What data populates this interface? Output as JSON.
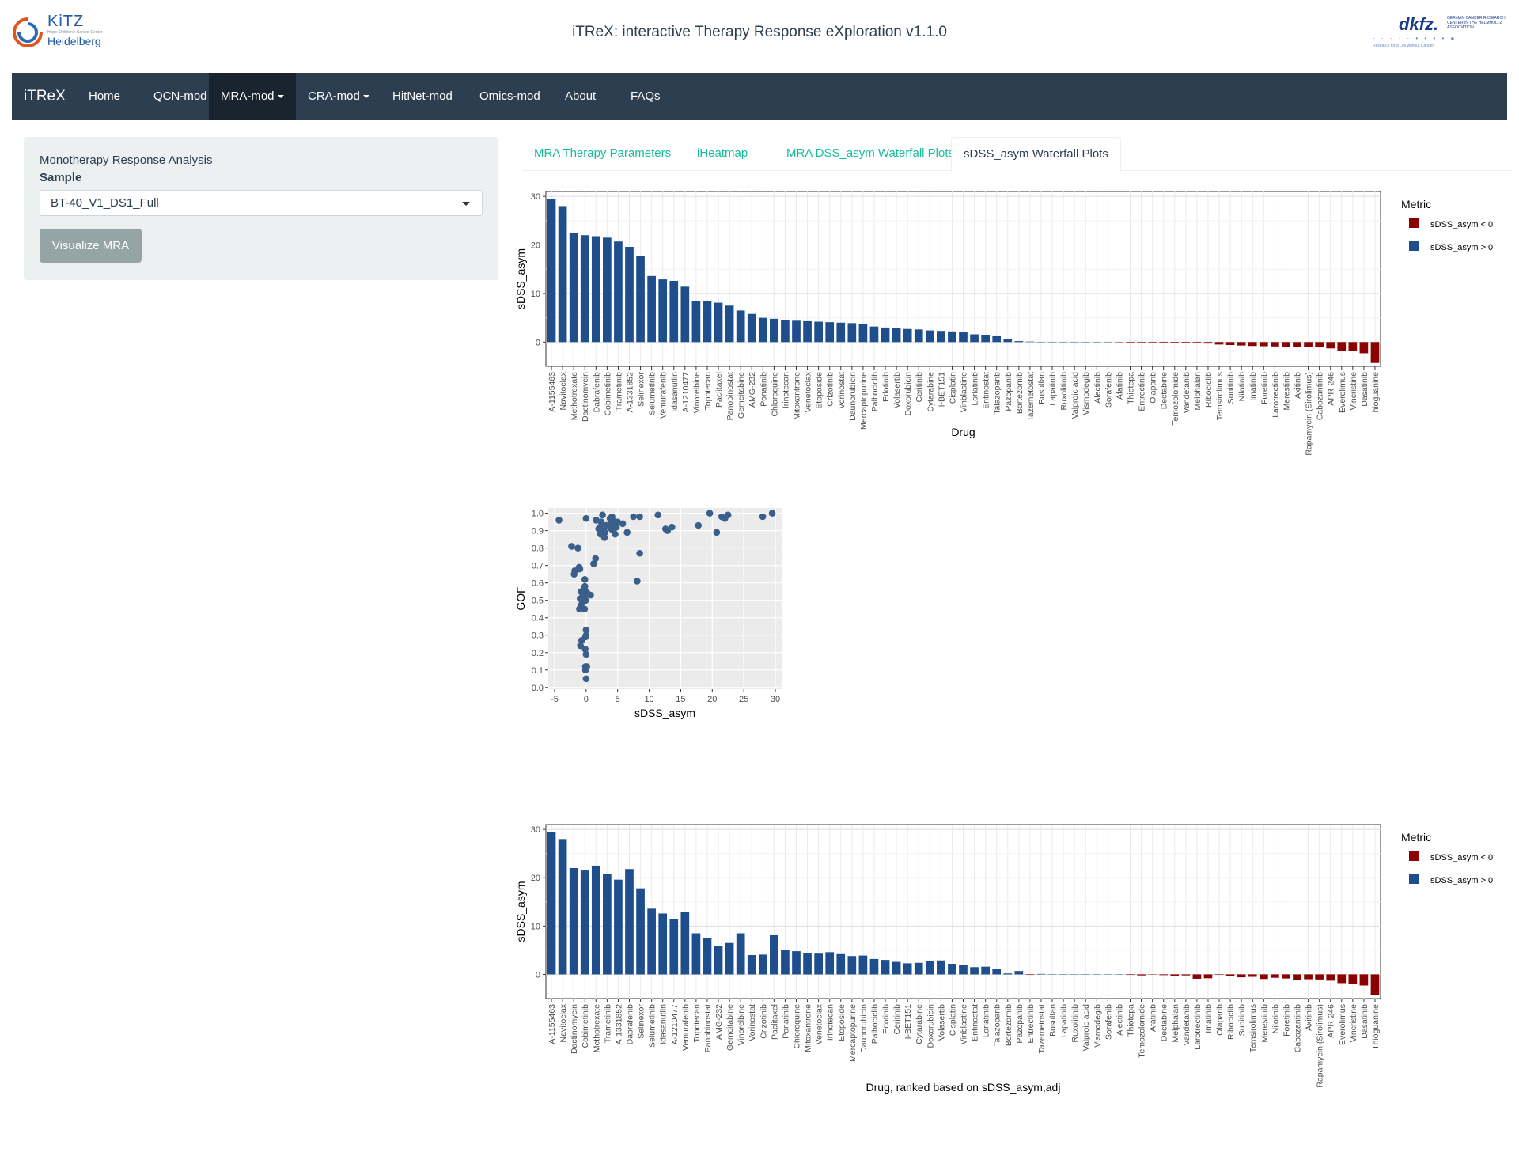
{
  "header": {
    "title": "iTReX: interactive Therapy Response eXploration v1.1.0",
    "logo_left": {
      "word": "KiTZ",
      "tiny": "Hopp Children's Cancer Center",
      "city": "Heidelberg"
    },
    "logo_right": {
      "word": "dkfz.",
      "sub": "GERMAN CANCER RESEARCH CENTER IN THE HELMHOLTZ ASSOCIATION",
      "tag": "Research for a Life without Cancer"
    }
  },
  "navbar": {
    "brand": "iTReX",
    "items": [
      {
        "label": "Home",
        "active": false,
        "dropdown": false
      },
      {
        "label": "QCN-mod",
        "active": false,
        "dropdown": false
      },
      {
        "label": "MRA-mod",
        "active": true,
        "dropdown": true
      },
      {
        "label": "CRA-mod",
        "active": false,
        "dropdown": true
      },
      {
        "label": "HitNet-mod",
        "active": false,
        "dropdown": false
      },
      {
        "label": "Omics-mod",
        "active": false,
        "dropdown": false
      },
      {
        "label": "About",
        "active": false,
        "dropdown": false
      },
      {
        "label": "FAQs",
        "active": false,
        "dropdown": false
      }
    ]
  },
  "sidebar": {
    "title": "Monotherapy Response Analysis",
    "sample_label": "Sample",
    "sample_value": "BT-40_V1_DS1_Full",
    "button_label": "Visualize MRA"
  },
  "tabs": [
    {
      "label": "MRA Therapy Parameters",
      "active": false
    },
    {
      "label": "iHeatmap",
      "active": false
    },
    {
      "label": "MRA DSS_asym Waterfall Plots",
      "active": false
    },
    {
      "label": "sDSS_asym Waterfall Plots",
      "active": true
    }
  ],
  "colors": {
    "navbar": "#2c3e50",
    "accent": "#18bc9c",
    "positive": "#1f4e8c",
    "negative": "#8b0000",
    "scatter": "#3a5f8a"
  },
  "chart_data": [
    {
      "type": "bar",
      "xlabel": "Drug",
      "ylabel": "sDSS_asym",
      "ylim": [
        -5,
        31
      ],
      "yticks": [
        0,
        10,
        20,
        30
      ],
      "legend": {
        "title": "Metric",
        "entries": [
          "sDSS_asym < 0",
          "sDSS_asym > 0"
        ],
        "position": "right"
      },
      "categories": [
        "A-1155463",
        "Navitoclax",
        "Methotrexate",
        "Dactinomycin",
        "Dabrafenib",
        "Cobimetinib",
        "Trametinib",
        "A-1331852",
        "Selinexor",
        "Selumetinib",
        "Vemurafenib",
        "Idasanutlin",
        "A-1210477",
        "Vinorelbine",
        "Topotecan",
        "Paclitaxel",
        "Panobinostat",
        "Gemcitabine",
        "AMG-232",
        "Ponatinib",
        "Chloroquine",
        "Irinotecan",
        "Mitoxantrone",
        "Venetoclax",
        "Etoposide",
        "Crizotinib",
        "Vorinostat",
        "Daunorubicin",
        "Mercaptopurine",
        "Palbociclib",
        "Erlotinib",
        "Volasertib",
        "Doxorubicin",
        "Ceritinib",
        "Cytarabine",
        "I-BET151",
        "Cisplatin",
        "Vinblastine",
        "Lorlatinib",
        "Entinostat",
        "Talazoparib",
        "Pazopanib",
        "Bortezomib",
        "Tazemetostat",
        "Busulfan",
        "Lapatinib",
        "Ruxolitinib",
        "Valproic acid",
        "Vismodegib",
        "Alectinib",
        "Sorafenib",
        "Afatinib",
        "Thiotepa",
        "Entrectinib",
        "Olaparib",
        "Dectabine",
        "Temozolomide",
        "Vandetanib",
        "Melphalan",
        "Ribociclib",
        "Temsirolimus",
        "Sunitinib",
        "Nilotinib",
        "Imatinib",
        "Foretinib",
        "Larotrectinib",
        "Merestinib",
        "Axitinib",
        "Rapamycin (Sirolimus)",
        "Cabozantinib",
        "APR-246",
        "Everolimus",
        "Vincristine",
        "Dasatinib",
        "Thioguanine"
      ],
      "values": [
        29.5,
        28.0,
        22.5,
        22.0,
        21.8,
        21.5,
        20.7,
        19.6,
        17.8,
        13.6,
        12.9,
        12.6,
        11.4,
        8.5,
        8.5,
        8.1,
        7.5,
        6.5,
        5.8,
        5.0,
        4.8,
        4.6,
        4.4,
        4.3,
        4.2,
        4.1,
        4.0,
        3.9,
        3.8,
        3.2,
        3.0,
        2.9,
        2.7,
        2.6,
        2.4,
        2.3,
        2.2,
        2.0,
        1.6,
        1.5,
        1.2,
        0.7,
        0.2,
        0.1,
        0,
        0,
        0,
        0,
        0,
        0,
        0,
        -0.05,
        -0.1,
        -0.1,
        -0.1,
        -0.15,
        -0.2,
        -0.2,
        -0.25,
        -0.3,
        -0.5,
        -0.6,
        -0.7,
        -0.8,
        -0.85,
        -0.9,
        -0.95,
        -1.0,
        -1.05,
        -1.1,
        -1.3,
        -1.8,
        -1.9,
        -2.3,
        -4.3
      ]
    },
    {
      "type": "scatter",
      "xlabel": "sDSS_asym",
      "ylabel": "GOF",
      "xlim": [
        -6,
        31
      ],
      "ylim": [
        -0.01,
        1.03
      ],
      "xticks": [
        -5,
        0,
        5,
        10,
        15,
        20,
        25,
        30
      ],
      "yticks": [
        "0.0",
        "0.1",
        "0.2",
        "0.3",
        "0.4",
        "0.5",
        "0.6",
        "0.7",
        "0.8",
        "0.9",
        "1.0"
      ],
      "points": [
        [
          -4.3,
          0.96
        ],
        [
          -2.3,
          0.81
        ],
        [
          -1.9,
          0.65
        ],
        [
          -1.8,
          0.67
        ],
        [
          -1.3,
          0.8
        ],
        [
          -1.1,
          0.69
        ],
        [
          -1.0,
          0.68
        ],
        [
          -1.05,
          0.45
        ],
        [
          -0.95,
          0.51
        ],
        [
          -0.9,
          0.24
        ],
        [
          -0.85,
          0.47
        ],
        [
          -0.8,
          0.55
        ],
        [
          -0.7,
          0.27
        ],
        [
          -0.6,
          0.49
        ],
        [
          -0.5,
          0.53
        ],
        [
          -0.3,
          0.57
        ],
        [
          -0.25,
          0.45
        ],
        [
          -0.2,
          0.62
        ],
        [
          -0.2,
          0.58
        ],
        [
          -0.15,
          0.22
        ],
        [
          -0.1,
          0.29
        ],
        [
          -0.1,
          0.12
        ],
        [
          -0.1,
          0.1
        ],
        [
          -0.05,
          0.5
        ],
        [
          0,
          0.33
        ],
        [
          0,
          0.05
        ],
        [
          0,
          0.19
        ],
        [
          0,
          0.3
        ],
        [
          0,
          0.55
        ],
        [
          0,
          0.97
        ],
        [
          0.1,
          0.12
        ],
        [
          0.2,
          0.54
        ],
        [
          0.7,
          0.53
        ],
        [
          1.2,
          0.71
        ],
        [
          1.5,
          0.74
        ],
        [
          1.6,
          0.96
        ],
        [
          2.0,
          0.91
        ],
        [
          2.2,
          0.92
        ],
        [
          2.3,
          0.88
        ],
        [
          2.4,
          0.95
        ],
        [
          2.6,
          0.99
        ],
        [
          2.7,
          0.9
        ],
        [
          2.9,
          0.86
        ],
        [
          3.0,
          0.89
        ],
        [
          3.2,
          0.93
        ],
        [
          3.8,
          0.97
        ],
        [
          3.9,
          0.94
        ],
        [
          4.0,
          0.91
        ],
        [
          4.1,
          0.98
        ],
        [
          4.2,
          0.96
        ],
        [
          4.3,
          0.9
        ],
        [
          4.4,
          0.93
        ],
        [
          4.6,
          0.88
        ],
        [
          4.8,
          0.92
        ],
        [
          5.0,
          0.95
        ],
        [
          5.8,
          0.94
        ],
        [
          6.5,
          0.89
        ],
        [
          7.5,
          0.98
        ],
        [
          8.1,
          0.61
        ],
        [
          8.5,
          0.98
        ],
        [
          8.5,
          0.77
        ],
        [
          11.4,
          0.99
        ],
        [
          12.6,
          0.91
        ],
        [
          12.9,
          0.9
        ],
        [
          13.6,
          0.92
        ],
        [
          17.8,
          0.93
        ],
        [
          19.6,
          1.0
        ],
        [
          20.7,
          0.89
        ],
        [
          21.5,
          0.98
        ],
        [
          22.0,
          0.97
        ],
        [
          22.5,
          0.99
        ],
        [
          28.0,
          0.98
        ],
        [
          29.5,
          1.0
        ]
      ]
    },
    {
      "type": "bar",
      "xlabel": "Drug, ranked based on sDSS_asym,adj",
      "ylabel": "sDSS_asym",
      "ylim": [
        -5,
        31
      ],
      "yticks": [
        0,
        10,
        20,
        30
      ],
      "legend": {
        "title": "Metric",
        "entries": [
          "sDSS_asym < 0",
          "sDSS_asym > 0"
        ],
        "position": "right"
      },
      "categories": [
        "A-1155463",
        "Navitoclax",
        "Dactinomycin",
        "Cobimetinib",
        "Methotrexate",
        "Trametinib",
        "A-1331852",
        "Dabrafenib",
        "Selinexor",
        "Selumetinib",
        "Idasanutlin",
        "A-1210477",
        "Vemurafenib",
        "Topotecan",
        "Panobinostat",
        "AMG-232",
        "Gemcitabine",
        "Vinorelbine",
        "Vorinostat",
        "Crizotinib",
        "Paclitaxel",
        "Ponatinib",
        "Chloroquine",
        "Mitoxantrone",
        "Venetoclax",
        "Irinotecan",
        "Etoposide",
        "Mercaptopurine",
        "Daunorubicin",
        "Palbociclib",
        "Erlotinib",
        "Ceritinib",
        "I-BET151",
        "Cytarabine",
        "Doxorubicin",
        "Volasertib",
        "Cisplatin",
        "Vinblastine",
        "Entinostat",
        "Lorlatinib",
        "Talazoparib",
        "Bortezomib",
        "Pazopanib",
        "Entrectinib",
        "Tazemetostat",
        "Busulfan",
        "Lapatinib",
        "Ruxolitinib",
        "Valproic acid",
        "Vismodegib",
        "Sorafenib",
        "Alectinib",
        "Thiotepa",
        "Temozolomide",
        "Afatinib",
        "Dectabine",
        "Melphalan",
        "Vandetanib",
        "Larotrectinib",
        "Imatinib",
        "Olaparib",
        "Ribociclib",
        "Sunitinib",
        "Temsirolimus",
        "Merestinib",
        "Nilotinib",
        "Foretinib",
        "Cabozantinib",
        "Axitinib",
        "Rapamycin (Sirolimus)",
        "APR-246",
        "Everolimus",
        "Vincristine",
        "Dasatinib",
        "Thioguanine"
      ],
      "values": [
        29.5,
        28.0,
        22.0,
        21.5,
        22.5,
        20.7,
        19.6,
        21.8,
        17.8,
        13.6,
        12.6,
        11.4,
        12.9,
        8.5,
        7.5,
        5.8,
        6.5,
        8.5,
        4.0,
        4.1,
        8.1,
        5.0,
        4.8,
        4.4,
        4.3,
        4.6,
        4.2,
        3.8,
        3.9,
        3.2,
        3.0,
        2.6,
        2.3,
        2.4,
        2.7,
        2.9,
        2.2,
        2.0,
        1.5,
        1.6,
        1.2,
        0.2,
        0.7,
        -0.1,
        0.1,
        0,
        0,
        0,
        0,
        0,
        0,
        0,
        -0.1,
        -0.2,
        -0.05,
        -0.15,
        -0.25,
        -0.2,
        -0.9,
        -0.8,
        -0.1,
        -0.3,
        -0.6,
        -0.5,
        -0.95,
        -0.7,
        -0.85,
        -1.1,
        -1.0,
        -1.05,
        -1.3,
        -1.8,
        -1.9,
        -2.3,
        -4.3
      ]
    }
  ]
}
